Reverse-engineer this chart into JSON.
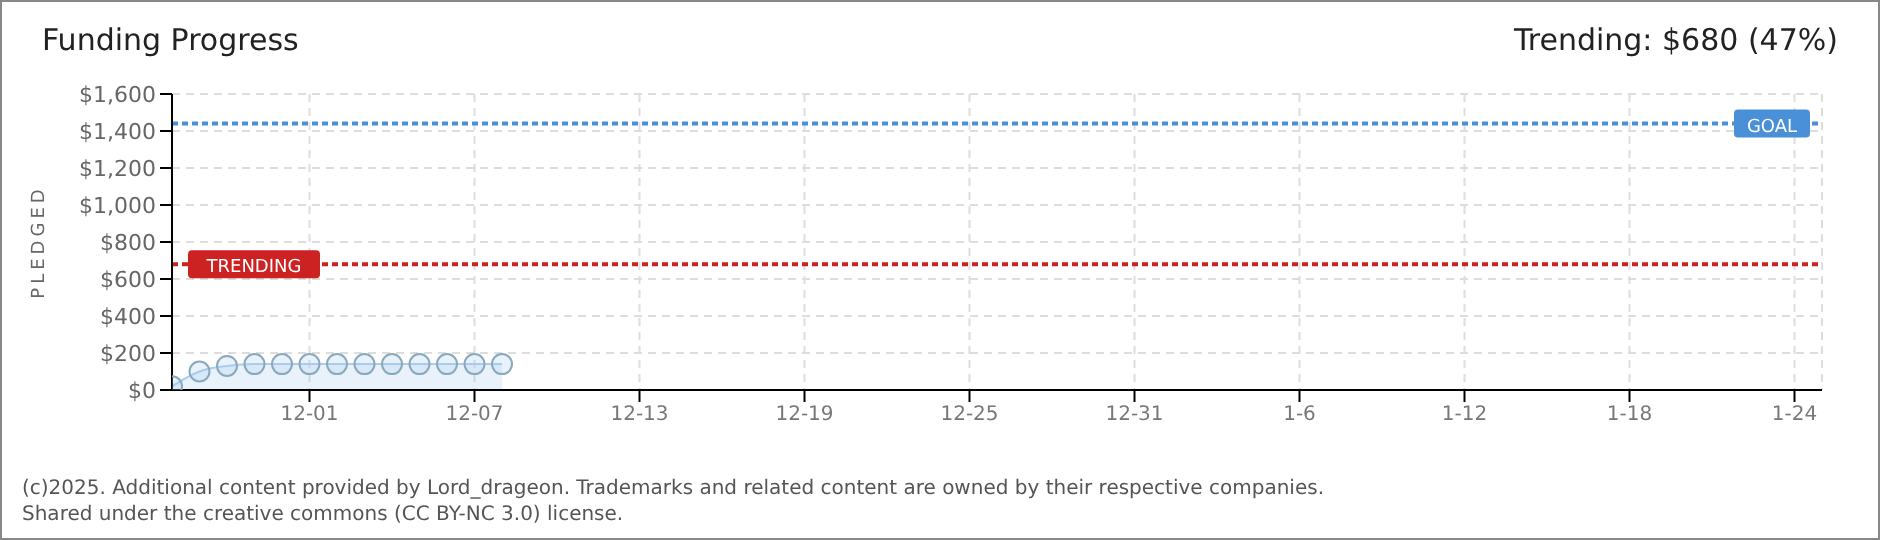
{
  "chart_data": {
    "type": "area",
    "title": "Funding Progress",
    "subtitle": "Trending: $680 (47%)",
    "ylabel": "PLEDGED",
    "annotations": [
      "(c)2025. Additional content provided by Lord_drageon. Trademarks and related content are owned by their respective companies.",
      "Shared under the creative commons (CC BY-NC 3.0) license."
    ],
    "x": [
      "2025-11-26",
      "2025-11-27",
      "2025-11-28",
      "2025-11-29",
      "2025-11-30",
      "2025-12-01",
      "2025-12-02",
      "2025-12-03",
      "2025-12-04",
      "2025-12-05",
      "2025-12-06",
      "2025-12-07",
      "2025-12-08"
    ],
    "series": [
      {
        "color": "#a9cdf0",
        "values": [
          20,
          100,
          130,
          140,
          140,
          140,
          140,
          140,
          140,
          140,
          140,
          140,
          140
        ]
      }
    ],
    "xlim": [
      "2025-11-26",
      "2026-01-25"
    ],
    "xticks": [
      {
        "value": "2025-12-01",
        "label": "12-01"
      },
      {
        "value": "2025-12-07",
        "label": "12-07"
      },
      {
        "value": "2025-12-13",
        "label": "12-13"
      },
      {
        "value": "2025-12-19",
        "label": "12-19"
      },
      {
        "value": "2025-12-25",
        "label": "12-25"
      },
      {
        "value": "2025-12-31",
        "label": "12-31"
      },
      {
        "value": "2026-01-06",
        "label": "1-6"
      },
      {
        "value": "2026-01-12",
        "label": "1-12"
      },
      {
        "value": "2026-01-18",
        "label": "1-18"
      },
      {
        "value": "2026-01-24",
        "label": "1-24"
      }
    ],
    "ylim": [
      0,
      1600
    ],
    "yticks": [
      {
        "value": 0,
        "label": "$0"
      },
      {
        "value": 200,
        "label": "$200"
      },
      {
        "value": 400,
        "label": "$400"
      },
      {
        "value": 600,
        "label": "$600"
      },
      {
        "value": 800,
        "label": "$800"
      },
      {
        "value": 1000,
        "label": "$1,000"
      },
      {
        "value": 1200,
        "label": "$1,200"
      },
      {
        "value": 1400,
        "label": "$1,400"
      },
      {
        "value": 1600,
        "label": "$1,600"
      }
    ],
    "ref_lines": [
      {
        "axis": "y",
        "value": 1440,
        "label": "GOAL",
        "color": "#4a90d9",
        "line_style": "dotted"
      },
      {
        "axis": "y",
        "value": 680,
        "label": "TRENDING",
        "color": "#cc2222",
        "line_style": "dotted"
      }
    ],
    "grid": true,
    "marker": "circle",
    "line_style": "solid"
  }
}
